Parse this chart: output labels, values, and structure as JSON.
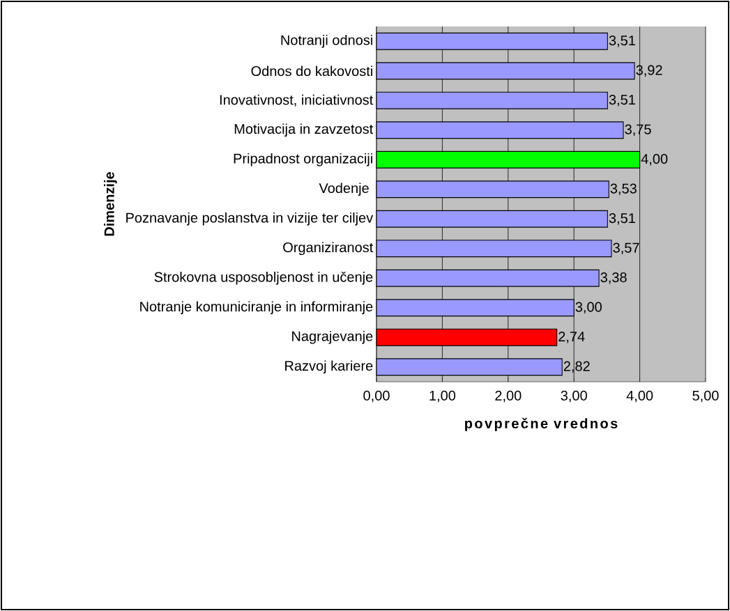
{
  "chart_data": {
    "type": "bar",
    "orientation": "horizontal",
    "xlabel": "povprečne vrednos",
    "ylabel": "Dimenzije",
    "categories": [
      "Notranji odnosi",
      "Odnos do kakovosti",
      "Inovativnost, iniciativnost",
      "Motivacija in zavzetost",
      "Pripadnost organizaciji",
      "Vodenje ",
      "Poznavanje poslanstva in vizije ter ciljev",
      "Organiziranost",
      "Strokovna usposobljenost in učenje",
      "Notranje komuniciranje in informiranje",
      "Nagrajevanje",
      "Razvoj kariere"
    ],
    "values": [
      3.51,
      3.92,
      3.51,
      3.75,
      4.0,
      3.53,
      3.51,
      3.57,
      3.38,
      3.0,
      2.74,
      2.82
    ],
    "value_labels": [
      "3,51",
      "3,92",
      "3,51",
      "3,75",
      "4,00",
      "3,53",
      "3,51",
      "3,57",
      "3,38",
      "3,00",
      "2,74",
      "2,82"
    ],
    "colors": [
      "#9999ff",
      "#9999ff",
      "#9999ff",
      "#9999ff",
      "#00ff00",
      "#9999ff",
      "#9999ff",
      "#9999ff",
      "#9999ff",
      "#9999ff",
      "#ff0000",
      "#9999ff"
    ],
    "xlim": [
      0,
      5
    ],
    "xticks": [
      {
        "value": 0,
        "label": "0,00"
      },
      {
        "value": 1,
        "label": "1,00"
      },
      {
        "value": 2,
        "label": "2,00"
      },
      {
        "value": 3,
        "label": "3,00"
      },
      {
        "value": 4,
        "label": "4,00"
      },
      {
        "value": 5,
        "label": "5,00"
      }
    ],
    "grid": "x"
  }
}
